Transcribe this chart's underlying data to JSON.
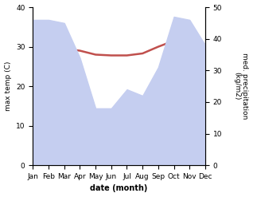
{
  "months": [
    "Jan",
    "Feb",
    "Mar",
    "Apr",
    "May",
    "Jun",
    "Jul",
    "Aug",
    "Sep",
    "Oct",
    "Nov",
    "Dec"
  ],
  "temp_max": [
    30.0,
    30.2,
    29.5,
    29.0,
    28.0,
    27.8,
    27.8,
    28.3,
    30.0,
    31.5,
    31.5,
    30.5
  ],
  "precipitation": [
    46,
    46,
    45,
    34,
    18,
    18,
    24,
    22,
    31,
    47,
    46,
    38
  ],
  "temp_color": "#c0504d",
  "precip_fill_color": "#c5cef0",
  "ylim_temp": [
    0,
    40
  ],
  "ylim_precip": [
    0,
    50
  ],
  "xlabel": "date (month)",
  "ylabel_left": "max temp (C)",
  "ylabel_right": "med. precipitation\n(kg/m2)",
  "bg_color": "#ffffff",
  "tick_fontsize": 6.5,
  "label_fontsize": 6.5,
  "xlabel_fontsize": 7
}
